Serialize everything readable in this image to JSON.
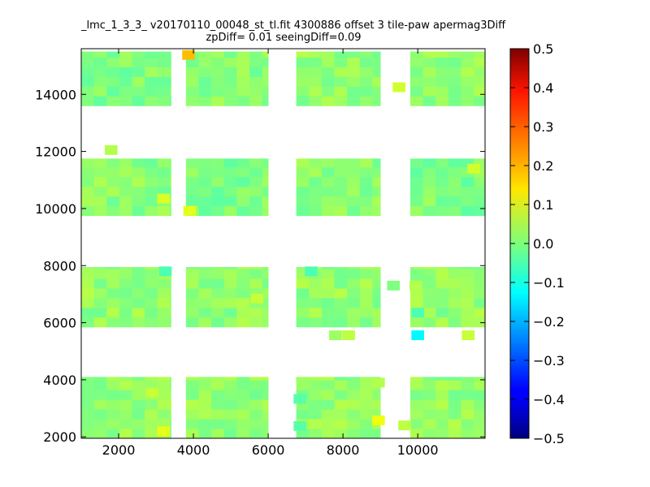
{
  "chart_data": {
    "type": "heatmap",
    "title_lines": [
      "_lmc_1_3_3_ v20170110_00048_st_tl.fit 4300886 offset 3 tile-paw apermag3Diff",
      "zpDiff= 0.01 seeingDiff=0.09"
    ],
    "xlabel": "",
    "ylabel": "",
    "xlim": [
      1000,
      11800
    ],
    "ylim": [
      1950,
      15600
    ],
    "x_ticks": [
      2000,
      4000,
      6000,
      8000,
      10000
    ],
    "y_ticks": [
      2000,
      4000,
      6000,
      8000,
      10000,
      12000,
      14000
    ],
    "x_tick_labels": [
      "2000",
      "4000",
      "6000",
      "8000",
      "10000"
    ],
    "y_tick_labels": [
      "2000",
      "4000",
      "6000",
      "8000",
      "10000",
      "12000",
      "14000"
    ],
    "colorscale": "jet",
    "color_range": [
      -0.5,
      0.5
    ],
    "colorbar_ticks": [
      0.5,
      0.4,
      0.3,
      0.2,
      0.1,
      0.0,
      -0.1,
      -0.2,
      -0.3,
      -0.4,
      -0.5
    ],
    "colorbar_tick_labels": [
      "0.5",
      "0.4",
      "0.3",
      "0.2",
      "0.1",
      "0.0",
      "−0.1",
      "−0.2",
      "−0.3",
      "−0.4",
      "−0.5"
    ],
    "cell_size": [
      340,
      340
    ],
    "blocks": [
      {
        "x": [
          1000,
          3400
        ],
        "y": [
          13600,
          15500
        ],
        "value": 0.0
      },
      {
        "x": [
          3800,
          6000
        ],
        "y": [
          13600,
          15500
        ],
        "value": 0.01
      },
      {
        "x": [
          6750,
          9000
        ],
        "y": [
          13600,
          15500
        ],
        "value": 0.02
      },
      {
        "x": [
          9800,
          11800
        ],
        "y": [
          13600,
          15500
        ],
        "value": 0.02
      },
      {
        "x": [
          1000,
          3400
        ],
        "y": [
          9750,
          11750
        ],
        "value": 0.01
      },
      {
        "x": [
          3800,
          6000
        ],
        "y": [
          9750,
          11750
        ],
        "value": 0.0
      },
      {
        "x": [
          6750,
          9000
        ],
        "y": [
          9750,
          11750
        ],
        "value": 0.01
      },
      {
        "x": [
          9800,
          11800
        ],
        "y": [
          9750,
          11750
        ],
        "value": 0.0
      },
      {
        "x": [
          1000,
          3400
        ],
        "y": [
          5850,
          7950
        ],
        "value": 0.02
      },
      {
        "x": [
          3800,
          6000
        ],
        "y": [
          5850,
          7950
        ],
        "value": 0.02
      },
      {
        "x": [
          6750,
          9000
        ],
        "y": [
          5850,
          7950
        ],
        "value": 0.02
      },
      {
        "x": [
          9800,
          11800
        ],
        "y": [
          5850,
          7950
        ],
        "value": 0.02
      },
      {
        "x": [
          1000,
          3400
        ],
        "y": [
          1950,
          4100
        ],
        "value": 0.02
      },
      {
        "x": [
          3800,
          6000
        ],
        "y": [
          1950,
          4100
        ],
        "value": 0.02
      },
      {
        "x": [
          6750,
          9000
        ],
        "y": [
          1950,
          4100
        ],
        "value": 0.02
      },
      {
        "x": [
          9800,
          11800
        ],
        "y": [
          1950,
          4100
        ],
        "value": 0.02
      }
    ],
    "cells": [
      {
        "x": 3870,
        "y": 15380,
        "value": 0.19
      },
      {
        "x": 9500,
        "y": 14250,
        "value": 0.08
      },
      {
        "x": 3200,
        "y": 10350,
        "value": 0.09
      },
      {
        "x": 3900,
        "y": 9920,
        "value": 0.1
      },
      {
        "x": 1800,
        "y": 12050,
        "value": 0.05
      },
      {
        "x": 11500,
        "y": 11400,
        "value": 0.08
      },
      {
        "x": 9350,
        "y": 7300,
        "value": 0.0
      },
      {
        "x": 10000,
        "y": 6350,
        "value": -0.05
      },
      {
        "x": 10000,
        "y": 5560,
        "value": -0.13
      },
      {
        "x": 7800,
        "y": 5560,
        "value": 0.03
      },
      {
        "x": 8150,
        "y": 5560,
        "value": 0.06
      },
      {
        "x": 11350,
        "y": 5560,
        "value": 0.07
      },
      {
        "x": 8950,
        "y": 3900,
        "value": 0.05
      },
      {
        "x": 8950,
        "y": 2580,
        "value": 0.11
      },
      {
        "x": 6850,
        "y": 3330,
        "value": -0.04
      },
      {
        "x": 6850,
        "y": 2380,
        "value": -0.04
      },
      {
        "x": 9650,
        "y": 2400,
        "value": 0.06
      },
      {
        "x": 3200,
        "y": 2200,
        "value": 0.1
      },
      {
        "x": 2900,
        "y": 3550,
        "value": 0.07
      },
      {
        "x": 5700,
        "y": 6850,
        "value": 0.07
      },
      {
        "x": 3250,
        "y": 7800,
        "value": -0.05
      },
      {
        "x": 7150,
        "y": 7800,
        "value": -0.05
      },
      {
        "x": 9950,
        "y": 7300,
        "value": 0.05
      }
    ]
  }
}
